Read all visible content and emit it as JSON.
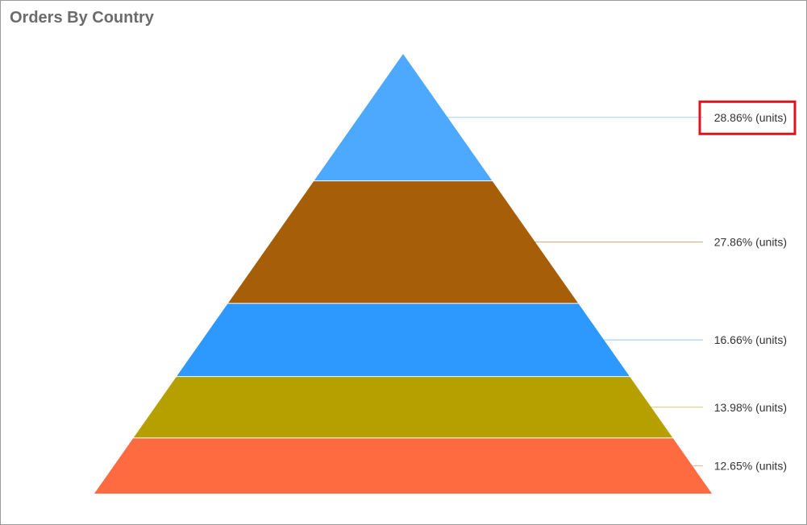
{
  "panel": {
    "title": "Orders By Country"
  },
  "chart_data": {
    "type": "pyramid",
    "title": "Orders By Country",
    "unit_label": "(units)",
    "segments": [
      {
        "value": 28.86,
        "label": "28.86% (units)",
        "color": "#4CA9FE",
        "highlighted": true
      },
      {
        "value": 27.86,
        "label": "27.86% (units)",
        "color": "#A65F08",
        "highlighted": false
      },
      {
        "value": 16.66,
        "label": "16.66% (units)",
        "color": "#2D98FE",
        "highlighted": false
      },
      {
        "value": 13.98,
        "label": "13.98% (units)",
        "color": "#B5A000",
        "highlighted": false
      },
      {
        "value": 12.65,
        "label": "12.65% (units)",
        "color": "#FF6B40",
        "highlighted": false
      }
    ],
    "highlight_color": "#E0141E"
  }
}
